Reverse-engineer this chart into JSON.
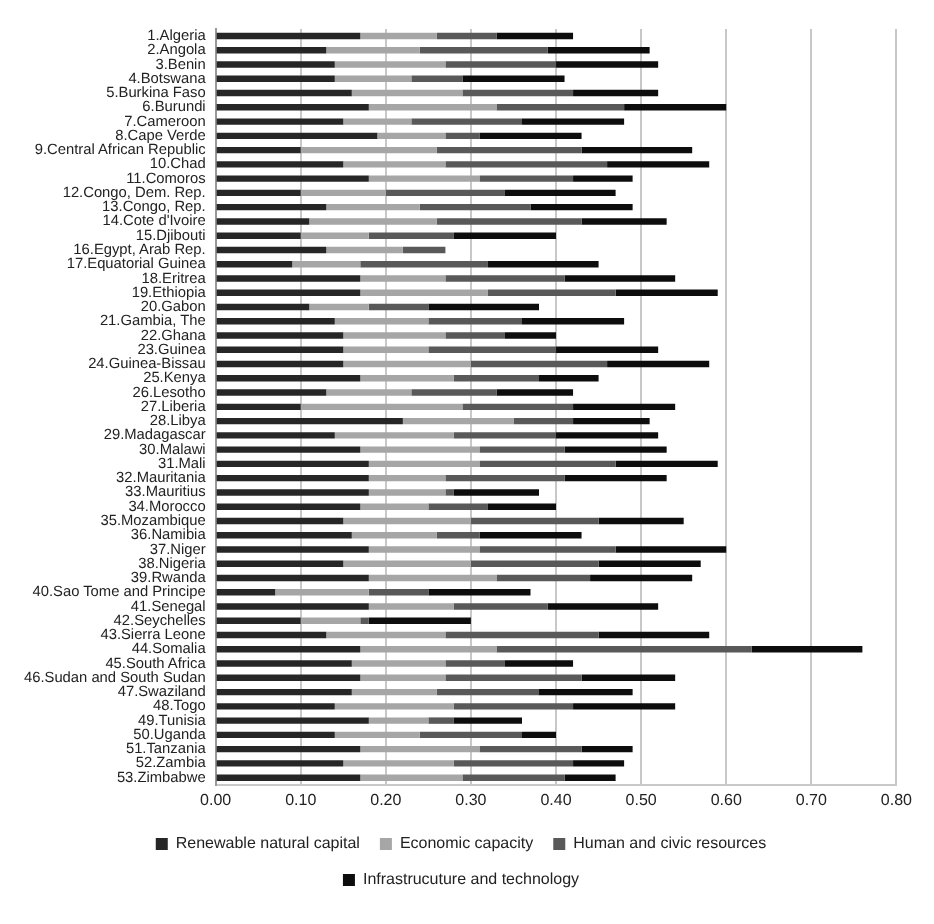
{
  "chart_data": {
    "type": "bar",
    "orientation": "horizontal",
    "stacked": true,
    "grid": "x",
    "legend": "bottom",
    "categories": [
      "1.Algeria",
      "2.Angola",
      "3.Benin",
      "4.Botswana",
      "5.Burkina Faso",
      "6.Burundi",
      "7.Cameroon",
      "8.Cape Verde",
      "9.Central African Republic",
      "10.Chad",
      "11.Comoros",
      "12.Congo, Dem. Rep.",
      "13.Congo, Rep.",
      "14.Cote d'Ivoire",
      "15.Djibouti",
      "16.Egypt, Arab Rep.",
      "17.Equatorial Guinea",
      "18.Eritrea",
      "19.Ethiopia",
      "20.Gabon",
      "21.Gambia, The",
      "22.Ghana",
      "23.Guinea",
      "24.Guinea-Bissau",
      "25.Kenya",
      "26.Lesotho",
      "27.Liberia",
      "28.Libya",
      "29.Madagascar",
      "30.Malawi",
      "31.Mali",
      "32.Mauritania",
      "33.Mauritius",
      "34.Morocco",
      "35.Mozambique",
      "36.Namibia",
      "37.Niger",
      "38.Nigeria",
      "39.Rwanda",
      "40.Sao Tome and Principe",
      "41.Senegal",
      "42.Seychelles",
      "43.Sierra Leone",
      "44.Somalia",
      "45.South Africa",
      "46.Sudan and South Sudan",
      "47.Swaziland",
      "48.Togo",
      "49.Tunisia",
      "50.Uganda",
      "51.Tanzania",
      "52.Zambia",
      "53.Zimbabwe"
    ],
    "xlim": [
      0,
      0.8
    ],
    "xticks": [
      {
        "value": 0,
        "label": "0.00"
      },
      {
        "value": 0.1,
        "label": "0.10"
      },
      {
        "value": 0.2,
        "label": "0.20"
      },
      {
        "value": 0.3,
        "label": "0.30"
      },
      {
        "value": 0.4,
        "label": "0.40"
      },
      {
        "value": 0.5,
        "label": "0.50"
      },
      {
        "value": 0.6,
        "label": "0.60"
      },
      {
        "value": 0.7,
        "label": "0.70"
      },
      {
        "value": 0.8,
        "label": "0.80"
      }
    ],
    "series": [
      {
        "name": "Renewable natural capital",
        "color": "#262626",
        "values": [
          0.17,
          0.13,
          0.14,
          0.14,
          0.16,
          0.18,
          0.15,
          0.19,
          0.1,
          0.15,
          0.18,
          0.1,
          0.13,
          0.11,
          0.1,
          0.13,
          0.09,
          0.17,
          0.17,
          0.11,
          0.14,
          0.15,
          0.15,
          0.15,
          0.17,
          0.13,
          0.1,
          0.22,
          0.14,
          0.17,
          0.18,
          0.18,
          0.18,
          0.17,
          0.15,
          0.16,
          0.18,
          0.15,
          0.18,
          0.07,
          0.18,
          0.1,
          0.13,
          0.17,
          0.16,
          0.17,
          0.16,
          0.14,
          0.18,
          0.14,
          0.17,
          0.15,
          0.17
        ]
      },
      {
        "name": "Economic capacity",
        "color": "#a6a6a6",
        "values": [
          0.09,
          0.11,
          0.13,
          0.09,
          0.13,
          0.15,
          0.08,
          0.08,
          0.16,
          0.12,
          0.13,
          0.1,
          0.11,
          0.15,
          0.08,
          0.09,
          0.08,
          0.1,
          0.15,
          0.07,
          0.11,
          0.12,
          0.1,
          0.15,
          0.11,
          0.1,
          0.19,
          0.13,
          0.14,
          0.14,
          0.13,
          0.09,
          0.09,
          0.08,
          0.15,
          0.1,
          0.13,
          0.15,
          0.15,
          0.11,
          0.1,
          0.07,
          0.14,
          0.16,
          0.11,
          0.1,
          0.1,
          0.14,
          0.07,
          0.1,
          0.14,
          0.13,
          0.12
        ]
      },
      {
        "name": "Human and civic resources",
        "color": "#595959",
        "values": [
          0.07,
          0.15,
          0.13,
          0.06,
          0.13,
          0.15,
          0.13,
          0.04,
          0.17,
          0.19,
          0.11,
          0.14,
          0.13,
          0.17,
          0.1,
          0.05,
          0.15,
          0.14,
          0.15,
          0.07,
          0.11,
          0.07,
          0.15,
          0.16,
          0.1,
          0.1,
          0.13,
          0.07,
          0.12,
          0.1,
          0.16,
          0.14,
          0.01,
          0.07,
          0.15,
          0.05,
          0.16,
          0.15,
          0.11,
          0.07,
          0.11,
          0.01,
          0.18,
          0.3,
          0.07,
          0.16,
          0.12,
          0.14,
          0.03,
          0.12,
          0.12,
          0.14,
          0.12
        ]
      },
      {
        "name": "Infrastrucuture and technology",
        "color": "#0d0d0d",
        "values": [
          0.09,
          0.12,
          0.12,
          0.12,
          0.1,
          0.12,
          0.12,
          0.12,
          0.13,
          0.12,
          0.07,
          0.13,
          0.12,
          0.1,
          0.12,
          null,
          0.13,
          0.13,
          0.12,
          0.13,
          0.12,
          0.06,
          0.12,
          0.12,
          0.07,
          0.09,
          0.12,
          0.09,
          0.12,
          0.12,
          0.12,
          0.12,
          0.1,
          0.08,
          0.1,
          0.12,
          0.13,
          0.12,
          0.12,
          0.12,
          0.13,
          0.12,
          0.13,
          0.13,
          0.08,
          0.11,
          0.11,
          0.12,
          0.08,
          0.04,
          0.06,
          0.06,
          0.06
        ]
      }
    ]
  }
}
